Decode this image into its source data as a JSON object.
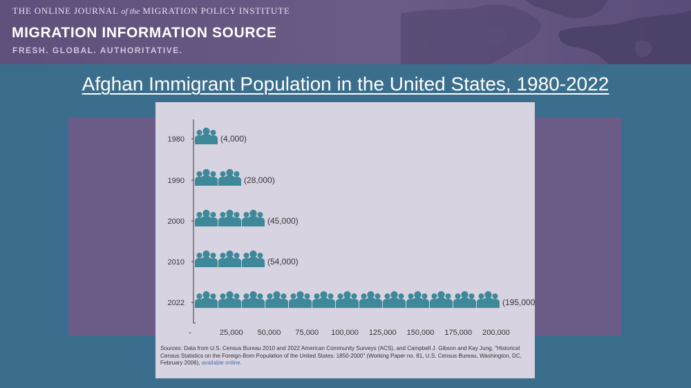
{
  "header": {
    "journal_pre": "THE ONLINE JOURNAL",
    "journal_of": "of the",
    "journal_post": "MIGRATION POLICY INSTITUTE",
    "brand": "MIGRATION INFORMATION SOURCE",
    "tagline": "FRESH. GLOBAL. AUTHORITATIVE."
  },
  "slide_title": "Afghan Immigrant Population in the United States, 1980-2022",
  "chart_data": {
    "type": "bar",
    "orientation": "horizontal",
    "categories": [
      "1980",
      "1990",
      "2000",
      "2010",
      "2022"
    ],
    "values": [
      4000,
      28000,
      45000,
      54000,
      195000
    ],
    "value_labels": [
      "(4,000)",
      "(28,000)",
      "(45,000)",
      "(54,000)",
      "(195,000)"
    ],
    "x_ticks": [
      "-",
      "25,000",
      "50,000",
      "75,000",
      "100,000",
      "125,000",
      "150,000",
      "175,000",
      "200,000"
    ],
    "xlim": [
      0,
      200000
    ],
    "title": "Afghan Immigrant Population in the United States, 1980-2022",
    "mark": "people-icon-groups"
  },
  "sources": {
    "label": "Sources:",
    "text": "Data from U.S. Census Bureau 2010 and 2022 American Community Surveys (ACS), and Campbell J. Gibson and Kay Jung, \"Historical Census Statistics on the Foreign-Born Population of the United States: 1850-2000\" (Working Paper no. 81, U.S. Census Bureau, Washington, DC, February 2006),",
    "link": "available online."
  },
  "colors": {
    "icon": "#3d8899",
    "axis": "#333333"
  }
}
